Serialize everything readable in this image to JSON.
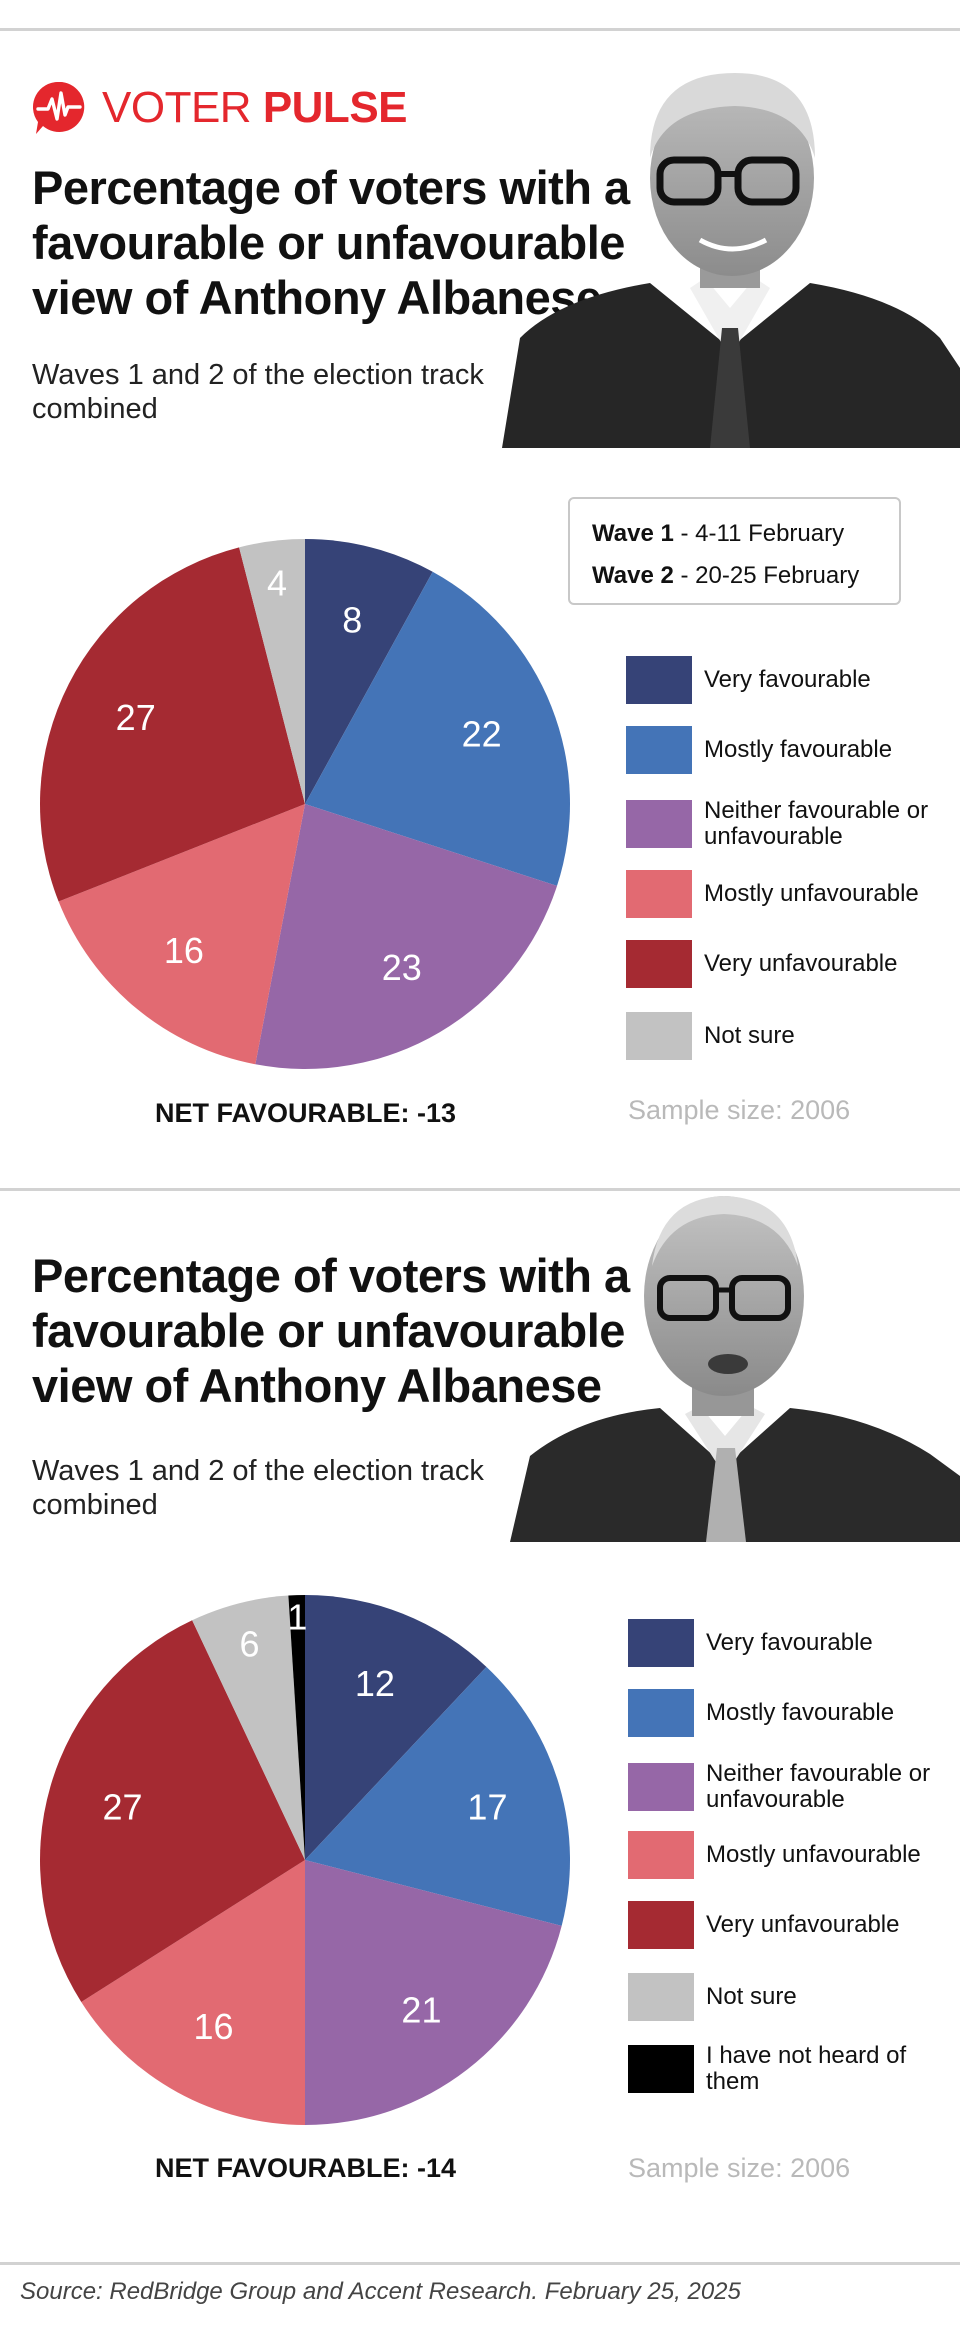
{
  "brand": {
    "name_light": "VOTER",
    "name_bold": "PULSE",
    "color": "#e4272d"
  },
  "colors": {
    "very_favourable": "#364377",
    "mostly_favourable": "#4474b7",
    "neither": "#9667a7",
    "mostly_unfavourable": "#e26a72",
    "very_unfavourable": "#a52a32",
    "not_sure": "#c2c2c2",
    "not_heard": "#000000"
  },
  "waves": {
    "wave1_label": "Wave 1",
    "wave1_dates": " - 4-11 February",
    "wave2_label": "Wave 2",
    "wave2_dates": " - 20-25 February"
  },
  "panel1": {
    "title": "Percentage of voters with a favourable or unfavourable view of Anthony Albanese",
    "subtitle": "Waves 1 and 2 of the election track combined",
    "net_favourable": "NET FAVOURABLE: -13",
    "sample_size": "Sample size: 2006",
    "legend": [
      "Very favourable",
      "Mostly favourable",
      "Neither favourable or unfavourable",
      "Mostly unfavourable",
      "Very unfavourable",
      "Not sure"
    ]
  },
  "panel2": {
    "title": "Percentage of voters with a favourable or unfavourable view of Anthony Albanese",
    "subtitle": "Waves 1 and 2 of the election track combined",
    "net_favourable": "NET FAVOURABLE: -14",
    "sample_size": "Sample size: 2006",
    "legend": [
      "Very favourable",
      "Mostly favourable",
      "Neither favourable or unfavourable",
      "Mostly unfavourable",
      "Very unfavourable",
      "Not sure",
      "I have not heard of them"
    ]
  },
  "source": "Source: RedBridge Group and Accent Research. February 25, 2025",
  "chart_data": [
    {
      "type": "pie",
      "title": "Percentage of voters with a favourable or unfavourable view of Anthony Albanese",
      "subtitle": "Waves 1 and 2 of the election track combined",
      "categories": [
        "Very favourable",
        "Mostly favourable",
        "Neither favourable or unfavourable",
        "Mostly unfavourable",
        "Very unfavourable",
        "Not sure"
      ],
      "values": [
        8,
        22,
        23,
        16,
        27,
        4
      ],
      "colors": [
        "#364377",
        "#4474b7",
        "#9667a7",
        "#e26a72",
        "#a52a32",
        "#c2c2c2"
      ],
      "net_favourable": -13,
      "sample_size": 2006
    },
    {
      "type": "pie",
      "title": "Percentage of voters with a favourable or unfavourable view of Anthony Albanese",
      "subtitle": "Waves 1 and 2 of the election track combined",
      "categories": [
        "Very favourable",
        "Mostly favourable",
        "Neither favourable or unfavourable",
        "Mostly unfavourable",
        "Very unfavourable",
        "Not sure",
        "I have not heard of them"
      ],
      "values": [
        12,
        17,
        21,
        16,
        27,
        6,
        1
      ],
      "colors": [
        "#364377",
        "#4474b7",
        "#9667a7",
        "#e26a72",
        "#a52a32",
        "#c2c2c2",
        "#000000"
      ],
      "net_favourable": -14,
      "sample_size": 2006
    }
  ]
}
